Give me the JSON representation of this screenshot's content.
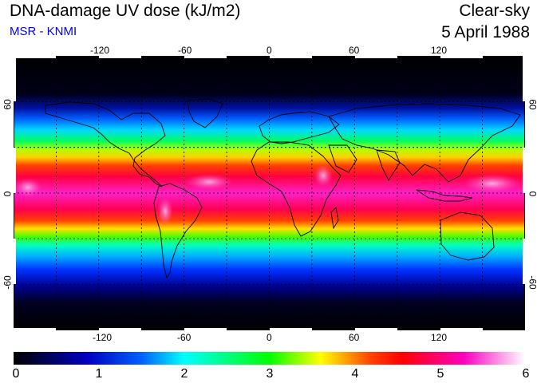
{
  "header": {
    "title": "DNA-damage UV dose (kJ/m2)",
    "subtitle": "MSR - KNMI",
    "condition": "Clear-sky",
    "date": "5 April 1988"
  },
  "map": {
    "projection": "equirectangular",
    "lon_range": [
      -180,
      180
    ],
    "lat_range": [
      -90,
      90
    ],
    "grid": true,
    "lon_ticks": [
      "-120",
      "-60",
      "0",
      "60",
      "120"
    ],
    "lat_ticks": [
      "60",
      "0",
      "-60"
    ],
    "colors": {
      "ocean_mid_latitude": "#0040ff",
      "land_outline": "#000000",
      "gridline": "#000000"
    }
  },
  "colorbar": {
    "min": 0,
    "max": 6,
    "labels": [
      "0",
      "1",
      "2",
      "3",
      "4",
      "5",
      "6"
    ],
    "stops": [
      "#000000",
      "#0000ff",
      "#00ffff",
      "#00ff00",
      "#ffff00",
      "#ff0000",
      "#ff00c0",
      "#ffffff"
    ]
  }
}
